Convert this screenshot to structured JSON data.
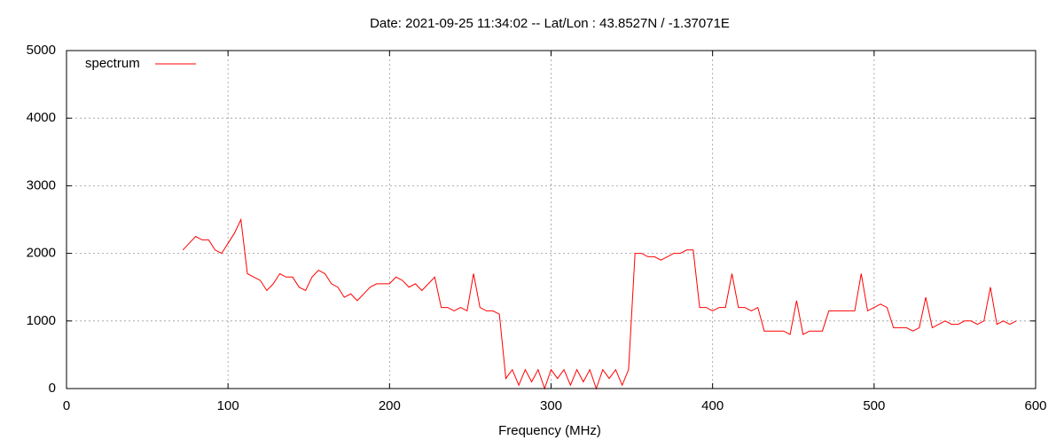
{
  "chart_data": {
    "type": "line",
    "title": "Date: 2021-09-25 11:34:02  --  Lat/Lon : 43.8527N / -1.37071E",
    "x_label": "Frequency (MHz)",
    "xlim": [
      0,
      600
    ],
    "xticks": [
      0,
      100,
      200,
      300,
      400,
      500,
      600
    ],
    "ylim": [
      0,
      5000
    ],
    "yticks": [
      0,
      1000,
      2000,
      3000,
      4000,
      5000
    ],
    "grid": true,
    "legend": "upper-left",
    "x": [
      72,
      76,
      80,
      84,
      88,
      92,
      96,
      100,
      104,
      108,
      112,
      116,
      120,
      124,
      128,
      132,
      136,
      140,
      144,
      148,
      152,
      156,
      160,
      164,
      168,
      172,
      176,
      180,
      184,
      188,
      192,
      196,
      200,
      204,
      208,
      212,
      216,
      220,
      224,
      228,
      232,
      236,
      240,
      244,
      248,
      252,
      256,
      260,
      264,
      268,
      272,
      276,
      280,
      284,
      288,
      292,
      296,
      300,
      304,
      308,
      312,
      316,
      320,
      324,
      328,
      332,
      336,
      340,
      344,
      348,
      352,
      356,
      360,
      364,
      368,
      372,
      376,
      380,
      384,
      388,
      392,
      396,
      400,
      404,
      408,
      412,
      416,
      420,
      424,
      428,
      432,
      436,
      440,
      444,
      448,
      452,
      456,
      460,
      464,
      468,
      472,
      476,
      480,
      484,
      488,
      492,
      496,
      500,
      504,
      508,
      512,
      516,
      520,
      524,
      528,
      532,
      536,
      540,
      544,
      548,
      552,
      556,
      560,
      564,
      568,
      572,
      576,
      580,
      584,
      588
    ],
    "series": [
      {
        "name": "spectrum",
        "color": "#ff0000",
        "values": [
          2050,
          2150,
          2250,
          2200,
          2200,
          2050,
          2000,
          2150,
          2300,
          2500,
          1700,
          1650,
          1600,
          1450,
          1550,
          1700,
          1650,
          1650,
          1500,
          1450,
          1650,
          1750,
          1700,
          1550,
          1500,
          1350,
          1400,
          1300,
          1400,
          1500,
          1550,
          1550,
          1550,
          1650,
          1600,
          1500,
          1550,
          1450,
          1550,
          1650,
          1200,
          1200,
          1150,
          1200,
          1150,
          1700,
          1200,
          1150,
          1150,
          1100,
          150,
          280,
          50,
          280,
          100,
          280,
          0,
          280,
          150,
          280,
          50,
          280,
          100,
          280,
          0,
          280,
          150,
          280,
          50,
          280,
          2000,
          2000,
          1950,
          1950,
          1900,
          1950,
          2000,
          2000,
          2050,
          2050,
          1200,
          1200,
          1150,
          1200,
          1200,
          1700,
          1200,
          1200,
          1150,
          1200,
          850,
          850,
          850,
          850,
          800,
          1300,
          800,
          850,
          850,
          850,
          1150,
          1150,
          1150,
          1150,
          1150,
          1700,
          1150,
          1200,
          1250,
          1200,
          900,
          900,
          900,
          850,
          900,
          1350,
          900,
          950,
          1000,
          950,
          950,
          1000,
          1000,
          950,
          1000,
          1500,
          950,
          1000,
          950,
          1000
        ]
      }
    ]
  }
}
